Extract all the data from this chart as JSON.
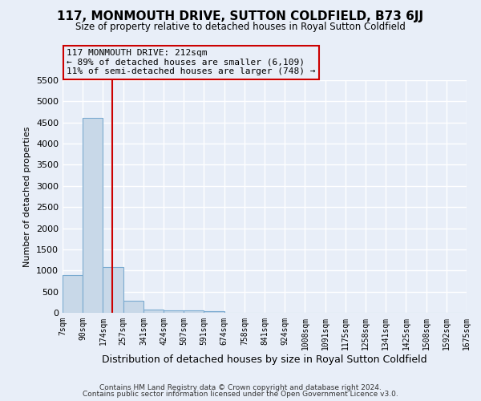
{
  "title": "117, MONMOUTH DRIVE, SUTTON COLDFIELD, B73 6JJ",
  "subtitle": "Size of property relative to detached houses in Royal Sutton Coldfield",
  "xlabel": "Distribution of detached houses by size in Royal Sutton Coldfield",
  "ylabel": "Number of detached properties",
  "property_size": 212,
  "property_label": "117 MONMOUTH DRIVE: 212sqm",
  "annotation_line1": "← 89% of detached houses are smaller (6,109)",
  "annotation_line2": "11% of semi-detached houses are larger (748) →",
  "bar_left_edges": [
    7,
    90,
    174,
    257,
    341,
    424,
    507,
    591,
    674,
    758,
    841,
    924,
    1008,
    1091,
    1175,
    1258,
    1341,
    1425,
    1508,
    1592
  ],
  "bar_heights": [
    890,
    4600,
    1080,
    290,
    80,
    60,
    50,
    40,
    0,
    0,
    0,
    0,
    0,
    0,
    0,
    0,
    0,
    0,
    0,
    0
  ],
  "bin_width": 83,
  "bar_color": "#c8d8e8",
  "bar_edge_color": "#7aaad0",
  "red_line_color": "#cc0000",
  "annotation_box_color": "#cc0000",
  "background_color": "#e8eef8",
  "grid_color": "#ffffff",
  "ylim": [
    0,
    5500
  ],
  "xlim": [
    7,
    1675
  ],
  "tick_labels": [
    "7sqm",
    "90sqm",
    "174sqm",
    "257sqm",
    "341sqm",
    "424sqm",
    "507sqm",
    "591sqm",
    "674sqm",
    "758sqm",
    "841sqm",
    "924sqm",
    "1008sqm",
    "1091sqm",
    "1175sqm",
    "1258sqm",
    "1341sqm",
    "1425sqm",
    "1508sqm",
    "1592sqm",
    "1675sqm"
  ],
  "footer1": "Contains HM Land Registry data © Crown copyright and database right 2024.",
  "footer2": "Contains public sector information licensed under the Open Government Licence v3.0.",
  "title_fontsize": 11,
  "subtitle_fontsize": 8.5,
  "ylabel_fontsize": 8,
  "xlabel_fontsize": 9,
  "tick_fontsize": 7,
  "footer_fontsize": 6.5
}
